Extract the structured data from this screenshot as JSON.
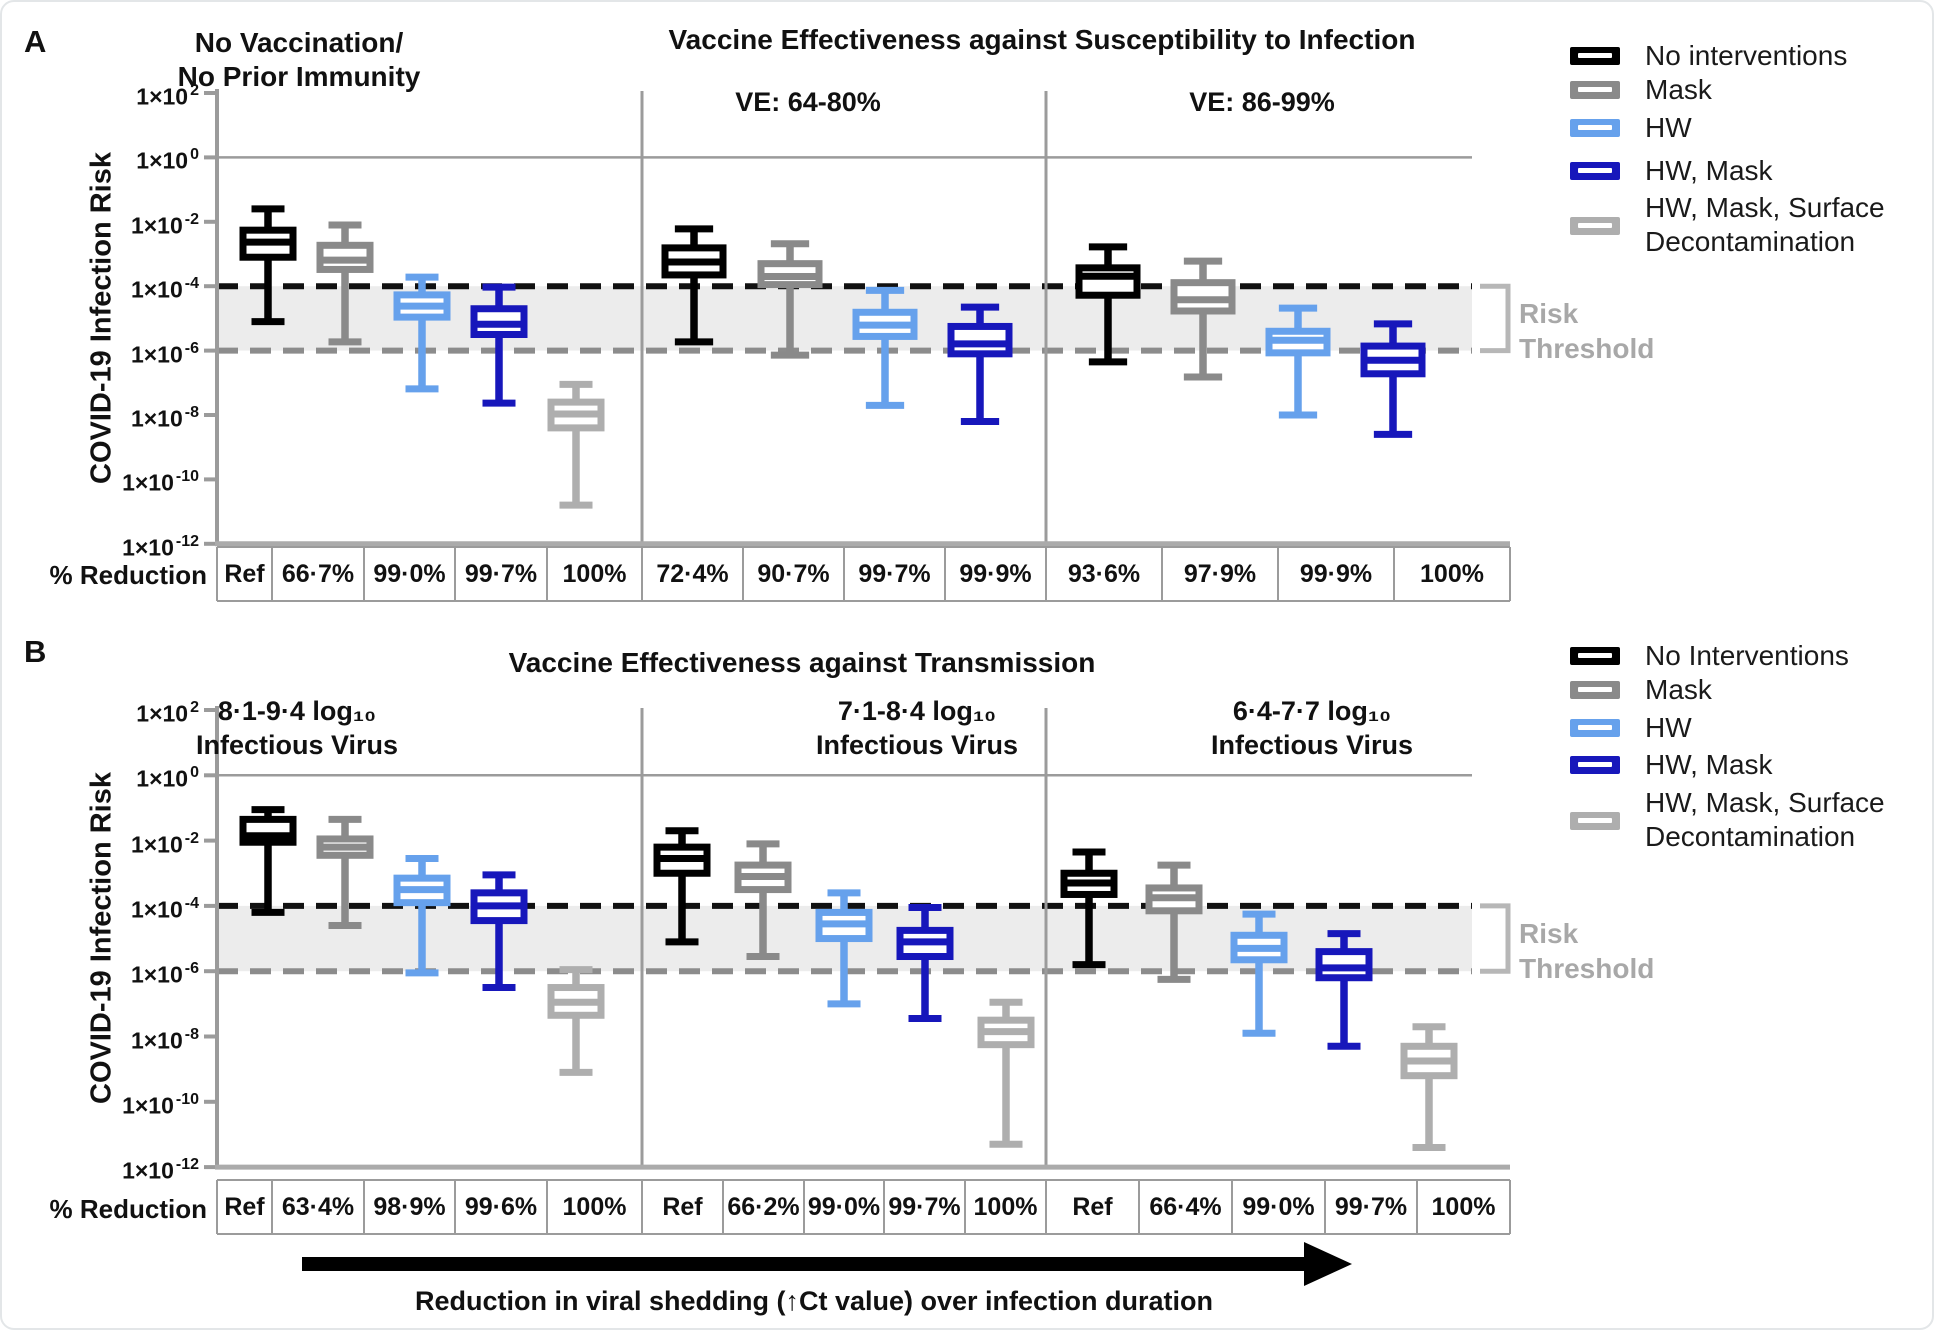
{
  "chart_data": {
    "type": "boxplot",
    "scale": "log10",
    "y_axis": {
      "label": "COVID-19 Infection Risk",
      "tick_mantissa": "1×10",
      "tick_exponents": [
        2,
        0,
        -2,
        -4,
        -6,
        -8,
        -10,
        -12
      ],
      "range_exponents": [
        2,
        -12
      ]
    },
    "risk_band": {
      "top_exponent": -4,
      "bottom_exponent": -6,
      "label_lines": [
        "Risk",
        "Threshold"
      ]
    },
    "reduction_row_label": "% Reduction",
    "footer_arrow_label": "Reduction in viral shedding (↑Ct value) over infection duration",
    "series_colors": {
      "black": "#000000",
      "mask": "#8a8a8a",
      "hw": "#66a1ec",
      "hw_mask": "#1717bb",
      "surface": "#aeaeae"
    },
    "style_colors": {
      "band_fill": "#ececec",
      "axis_gray": "#9b9b9b",
      "dashed_top": "#111111",
      "dashed_bottom": "#8c8c8c",
      "table_border": "#9b9b9b",
      "bottom_axis": "#ababab",
      "bracket": "#b7b7b7",
      "risk_text": "#a8a8a8"
    },
    "panels": [
      {
        "letter": "A",
        "titles": {
          "main": "Vaccine Effectiveness against Susceptibility to Infection"
        },
        "legend": [
          {
            "series": "black",
            "label": "No interventions"
          },
          {
            "series": "mask",
            "label": "Mask"
          },
          {
            "series": "hw",
            "label": "HW"
          },
          {
            "series": "hw_mask",
            "label": "HW, Mask"
          },
          {
            "series": "surface",
            "label_lines": [
              "HW, Mask, Surface",
              "Decontamination"
            ]
          }
        ],
        "groups": [
          {
            "subtitle_lines": [
              "No Vaccination/",
              "No Prior Immunity"
            ],
            "boxes": [
              {
                "series": "black",
                "reduction": "Ref",
                "log10": {
                  "whisker_low": -5.1,
                  "q1": -3.1,
                  "median": -2.63,
                  "q3": -2.26,
                  "whisker_high": -1.6
                }
              },
              {
                "series": "mask",
                "reduction": "66·7%",
                "log10": {
                  "whisker_low": -5.73,
                  "q1": -3.48,
                  "median": -3.19,
                  "q3": -2.73,
                  "whisker_high": -2.1
                }
              },
              {
                "series": "hw",
                "reduction": "99·0%",
                "log10": {
                  "whisker_low": -7.19,
                  "q1": -4.96,
                  "median": -4.62,
                  "q3": -4.27,
                  "whisker_high": -3.72
                }
              },
              {
                "series": "hw_mask",
                "reduction": "99·7%",
                "log10": {
                  "whisker_low": -7.63,
                  "q1": -5.5,
                  "median": -5.18,
                  "q3": -4.7,
                  "whisker_high": -4.03
                }
              },
              {
                "series": "surface",
                "reduction": "100%",
                "log10": {
                  "whisker_low": -10.8,
                  "q1": -8.4,
                  "median": -7.97,
                  "q3": -7.6,
                  "whisker_high": -7.05
                }
              }
            ]
          },
          {
            "subtitle_lines": [
              "VE: 64-80%"
            ],
            "boxes": [
              {
                "series": "black",
                "reduction": "72·4%",
                "log10": {
                  "whisker_low": -5.73,
                  "q1": -3.65,
                  "median": -3.25,
                  "q3": -2.81,
                  "whisker_high": -2.22
                }
              },
              {
                "series": "mask",
                "reduction": "90·7%",
                "log10": {
                  "whisker_low": -6.14,
                  "q1": -3.95,
                  "median": -3.7,
                  "q3": -3.3,
                  "whisker_high": -2.68
                }
              },
              {
                "series": "hw",
                "reduction": "99·7%",
                "log10": {
                  "whisker_low": -7.7,
                  "q1": -5.56,
                  "median": -5.21,
                  "q3": -4.81,
                  "whisker_high": -4.13
                }
              },
              {
                "series": "hw_mask",
                "reduction": "99·9%",
                "log10": {
                  "whisker_low": -8.2,
                  "q1": -6.1,
                  "median": -5.79,
                  "q3": -5.25,
                  "whisker_high": -4.65
                }
              }
            ]
          },
          {
            "subtitle_lines": [
              "VE: 86-99%"
            ],
            "boxes": [
              {
                "series": "black",
                "reduction": "93·6%",
                "log10": {
                  "whisker_low": -6.35,
                  "q1": -4.28,
                  "median": -3.69,
                  "q3": -3.43,
                  "whisker_high": -2.78
                }
              },
              {
                "series": "mask",
                "reduction": "97·9%",
                "log10": {
                  "whisker_low": -6.82,
                  "q1": -4.77,
                  "median": -4.42,
                  "q3": -3.89,
                  "whisker_high": -3.22
                }
              },
              {
                "series": "hw",
                "reduction": "99·9%",
                "log10": {
                  "whisker_low": -8.0,
                  "q1": -6.07,
                  "median": -5.68,
                  "q3": -5.4,
                  "whisker_high": -4.68
                }
              },
              {
                "series": "hw_mask",
                "reduction": "100%",
                "log10": {
                  "whisker_low": -8.6,
                  "q1": -6.72,
                  "median": -6.3,
                  "q3": -5.86,
                  "whisker_high": -5.17
                }
              }
            ]
          }
        ]
      },
      {
        "letter": "B",
        "titles": {
          "main": "Vaccine Effectiveness against Transmission"
        },
        "legend": [
          {
            "series": "black",
            "label": "No Interventions"
          },
          {
            "series": "mask",
            "label": "Mask"
          },
          {
            "series": "hw",
            "label": "HW"
          },
          {
            "series": "hw_mask",
            "label": "HW, Mask"
          },
          {
            "series": "surface",
            "label_lines": [
              "HW, Mask, Surface",
              "Decontamination"
            ]
          }
        ],
        "groups": [
          {
            "subtitle_lines": [
              "8·1-9·4 log₁₀",
              "Infectious Virus"
            ],
            "boxes": [
              {
                "series": "black",
                "reduction": "Ref",
                "log10": {
                  "whisker_low": -4.2,
                  "q1": -2.05,
                  "median": -1.85,
                  "q3": -1.35,
                  "whisker_high": -1.05
                }
              },
              {
                "series": "mask",
                "reduction": "63·4%",
                "log10": {
                  "whisker_low": -4.6,
                  "q1": -2.45,
                  "median": -2.2,
                  "q3": -1.95,
                  "whisker_high": -1.35
                }
              },
              {
                "series": "hw",
                "reduction": "98·9%",
                "log10": {
                  "whisker_low": -6.05,
                  "q1": -3.9,
                  "median": -3.5,
                  "q3": -3.15,
                  "whisker_high": -2.55
                }
              },
              {
                "series": "hw_mask",
                "reduction": "99·6%",
                "log10": {
                  "whisker_low": -6.5,
                  "q1": -4.45,
                  "median": -4.0,
                  "q3": -3.6,
                  "whisker_high": -3.05
                }
              },
              {
                "series": "surface",
                "reduction": "100%",
                "log10": {
                  "whisker_low": -9.1,
                  "q1": -7.35,
                  "median": -6.95,
                  "q3": -6.5,
                  "whisker_high": -5.95
                }
              }
            ]
          },
          {
            "subtitle_lines": [
              "7·1-8·4 log₁₀",
              "Infectious Virus"
            ],
            "boxes": [
              {
                "series": "black",
                "reduction": "Ref",
                "log10": {
                  "whisker_low": -5.1,
                  "q1": -3.0,
                  "median": -2.55,
                  "q3": -2.2,
                  "whisker_high": -1.7
                }
              },
              {
                "series": "mask",
                "reduction": "66·2%",
                "log10": {
                  "whisker_low": -5.55,
                  "q1": -3.5,
                  "median": -3.1,
                  "q3": -2.75,
                  "whisker_high": -2.1
                }
              },
              {
                "series": "hw",
                "reduction": "99·0%",
                "log10": {
                  "whisker_low": -7.0,
                  "q1": -5.0,
                  "median": -4.55,
                  "q3": -4.2,
                  "whisker_high": -3.6
                }
              },
              {
                "series": "hw_mask",
                "reduction": "99·7%",
                "log10": {
                  "whisker_low": -7.45,
                  "q1": -5.55,
                  "median": -5.1,
                  "q3": -4.75,
                  "whisker_high": -4.05
                }
              },
              {
                "series": "surface",
                "reduction": "100%",
                "log10": {
                  "whisker_low": -11.3,
                  "q1": -8.25,
                  "median": -7.85,
                  "q3": -7.5,
                  "whisker_high": -6.95
                }
              }
            ]
          },
          {
            "subtitle_lines": [
              "6·4-7·7 log₁₀",
              "Infectious Virus"
            ],
            "boxes": [
              {
                "series": "black",
                "reduction": "Ref",
                "log10": {
                  "whisker_low": -5.8,
                  "q1": -3.65,
                  "median": -3.3,
                  "q3": -3.0,
                  "whisker_high": -2.35
                }
              },
              {
                "series": "mask",
                "reduction": "66·4%",
                "log10": {
                  "whisker_low": -6.25,
                  "q1": -4.15,
                  "median": -3.75,
                  "q3": -3.45,
                  "whisker_high": -2.75
                }
              },
              {
                "series": "hw",
                "reduction": "99·0%",
                "log10": {
                  "whisker_low": -7.9,
                  "q1": -5.65,
                  "median": -5.3,
                  "q3": -4.9,
                  "whisker_high": -4.25
                }
              },
              {
                "series": "hw_mask",
                "reduction": "99·7%",
                "log10": {
                  "whisker_low": -8.3,
                  "q1": -6.2,
                  "median": -5.9,
                  "q3": -5.4,
                  "whisker_high": -4.85
                }
              },
              {
                "series": "surface",
                "reduction": "100%",
                "log10": {
                  "whisker_low": -11.4,
                  "q1": -9.2,
                  "median": -8.75,
                  "q3": -8.3,
                  "whisker_high": -7.7
                }
              }
            ]
          }
        ]
      }
    ]
  }
}
